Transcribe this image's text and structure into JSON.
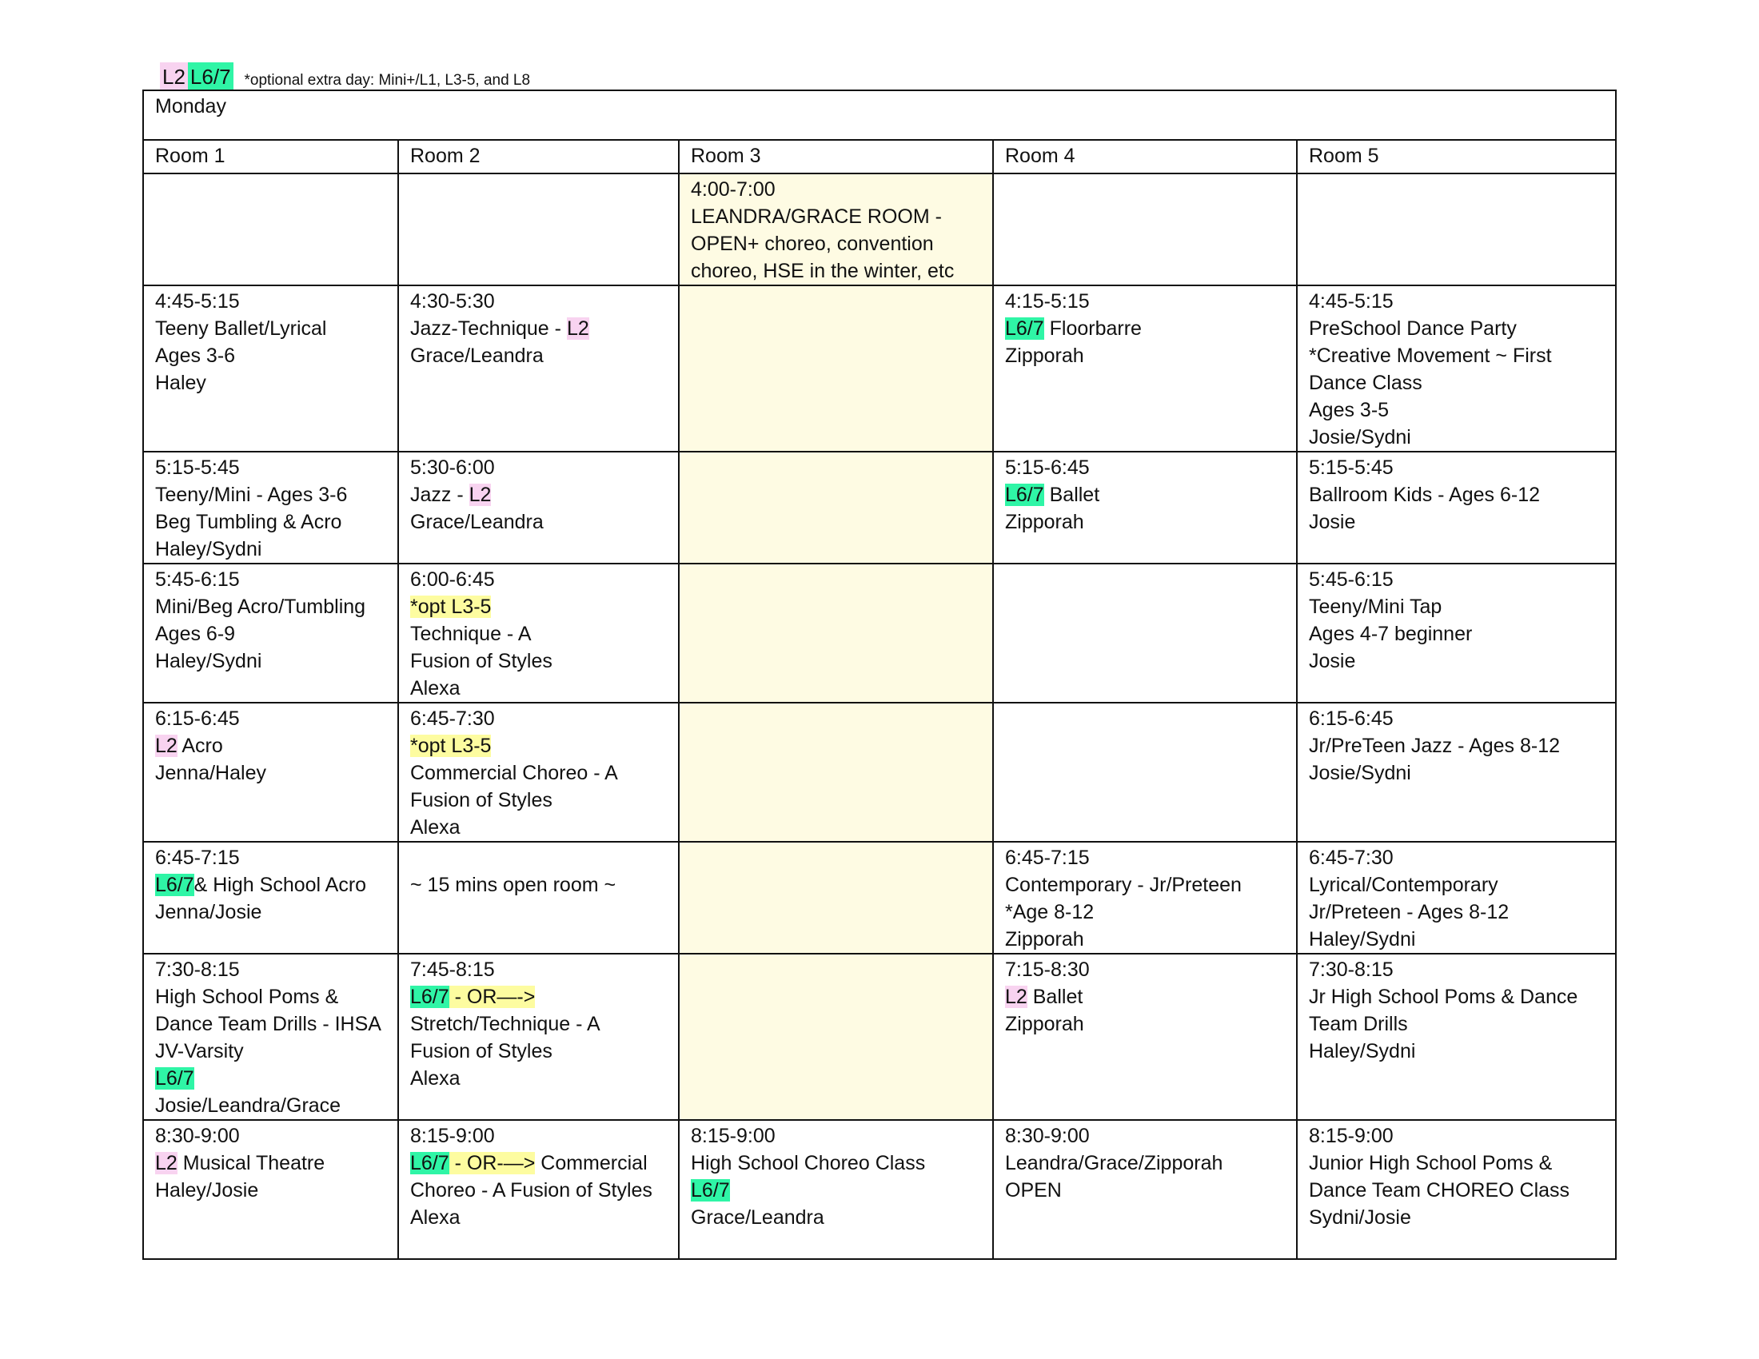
{
  "legend": {
    "tag1": "L2",
    "tag2": "L6/7",
    "note": "*optional extra day: Mini+/L1, L3-5, and L8"
  },
  "colors": {
    "pink": "#f8d3f0",
    "green": "#2ff5a6",
    "yellow_highlight": "#fdfca0",
    "room3_fill": "#fefbe3"
  },
  "day": "Monday",
  "rooms": [
    "Room 1",
    "Room 2",
    "Room 3",
    "Room 4",
    "Room 5"
  ],
  "cells": {
    "r0c3": [
      "4:00-7:00",
      "LEANDRA/GRACE ROOM -",
      "OPEN+ choreo, convention",
      "choreo, HSE in the winter, etc"
    ],
    "r1c1": [
      "4:45-5:15",
      "Teeny Ballet/Lyrical",
      "Ages 3-6",
      "Haley"
    ],
    "r1c2": [
      "4:30-5:30",
      "Jazz-Technique - ",
      "L2",
      "Grace/Leandra"
    ],
    "r1c4": [
      "4:15-5:15",
      "L6/7",
      " Floorbarre",
      "Zipporah"
    ],
    "r1c5": [
      "4:45-5:15",
      "PreSchool Dance Party",
      "*Creative Movement ~ First",
      "Dance Class",
      "Ages 3-5",
      "Josie/Sydni"
    ],
    "r2c1": [
      "5:15-5:45",
      "Teeny/Mini - Ages 3-6",
      "Beg Tumbling & Acro",
      "Haley/Sydni"
    ],
    "r2c2": [
      "5:30-6:00",
      "Jazz - ",
      "L2",
      "Grace/Leandra"
    ],
    "r2c4": [
      "5:15-6:45",
      "L6/7",
      " Ballet",
      "Zipporah"
    ],
    "r2c5": [
      "5:15-5:45",
      "Ballroom Kids - Ages 6-12",
      "Josie"
    ],
    "r3c1": [
      "5:45-6:15",
      "Mini/Beg Acro/Tumbling",
      "Ages 6-9",
      "Haley/Sydni"
    ],
    "r3c2": [
      "6:00-6:45",
      " *opt L3-5",
      "Technique - A",
      "Fusion of Styles",
      "Alexa"
    ],
    "r3c5": [
      "5:45-6:15",
      "Teeny/Mini Tap",
      "Ages 4-7 beginner",
      "Josie"
    ],
    "r4c1": [
      "6:15-6:45",
      "L2",
      " Acro",
      "Jenna/Haley"
    ],
    "r4c2": [
      "6:45-7:30",
      " *opt L3-5",
      "Commercial Choreo - A",
      "Fusion of Styles",
      "Alexa"
    ],
    "r4c5": [
      "6:15-6:45",
      "Jr/PreTeen Jazz - Ages 8-12",
      "Josie/Sydni"
    ],
    "r5c1": [
      "6:45-7:15",
      "L6/7",
      "& High School Acro",
      "Jenna/Josie"
    ],
    "r5c2": [
      "~ 15 mins open room ~"
    ],
    "r5c4": [
      "6:45-7:15",
      "Contemporary - Jr/Preteen",
      "*Age 8-12",
      "Zipporah"
    ],
    "r5c5": [
      "6:45-7:30",
      "Lyrical/Contemporary",
      "Jr/Preteen - Ages 8-12",
      "Haley/Sydni"
    ],
    "r6c1": [
      "7:30-8:15",
      "High School Poms &",
      "Dance Team Drills - IHSA",
      "JV-Varsity",
      "L6/7",
      "Josie/Leandra/Grace"
    ],
    "r6c2": [
      "7:45-8:15",
      "L6/7",
      " - OR—->",
      "Stretch/Technique - A",
      "Fusion of Styles",
      "Alexa"
    ],
    "r6c4": [
      "7:15-8:30",
      "L2",
      " Ballet",
      "Zipporah"
    ],
    "r6c5": [
      "7:30-8:15",
      "Jr High School Poms & Dance",
      "Team Drills",
      "Haley/Sydni"
    ],
    "r7c1": [
      "8:30-9:00",
      "L2",
      " Musical Theatre",
      "Haley/Josie"
    ],
    "r7c2": [
      "8:15-9:00",
      "L6/7",
      " - OR-—>",
      " Commercial",
      "Choreo - A Fusion of Styles",
      "Alexa"
    ],
    "r7c3": [
      "8:15-9:00",
      "High School Choreo Class",
      "L6/7",
      "Grace/Leandra"
    ],
    "r7c4": [
      "8:30-9:00",
      "Leandra/Grace/Zipporah",
      "OPEN"
    ],
    "r7c5": [
      "8:15-9:00",
      "Junior High School Poms &",
      "Dance Team CHOREO Class",
      "Sydni/Josie"
    ]
  }
}
